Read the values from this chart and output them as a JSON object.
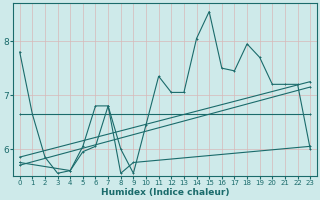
{
  "xlabel": "Humidex (Indice chaleur)",
  "bg_color": "#ceeaea",
  "grid_color": "#e8f8f8",
  "line_color": "#1a6b6b",
  "x_ticks": [
    0,
    1,
    2,
    3,
    4,
    5,
    6,
    7,
    8,
    9,
    10,
    11,
    12,
    13,
    14,
    15,
    16,
    17,
    18,
    19,
    20,
    21,
    22,
    23
  ],
  "ylim": [
    5.5,
    8.7
  ],
  "yticks": [
    6,
    7,
    8
  ],
  "series1": [
    7.8,
    6.65,
    5.85,
    5.55,
    5.6,
    6.05,
    6.8,
    6.8,
    6.0,
    5.55,
    6.45,
    7.35,
    7.05,
    7.05,
    8.05,
    8.55,
    7.5,
    7.45,
    7.95,
    7.7,
    7.2,
    7.2,
    7.2,
    6.0
  ],
  "series2_x": [
    0,
    23
  ],
  "series2_y": [
    6.65,
    6.65
  ],
  "series3_x": [
    0,
    4,
    5,
    6,
    7,
    8,
    9,
    23
  ],
  "series3_y": [
    5.75,
    5.6,
    5.95,
    6.05,
    6.8,
    5.55,
    5.75,
    6.05
  ],
  "series4_x": [
    0,
    23
  ],
  "series4_y": [
    5.7,
    7.15
  ],
  "series5_x": [
    0,
    23
  ],
  "series5_y": [
    5.85,
    7.25
  ]
}
